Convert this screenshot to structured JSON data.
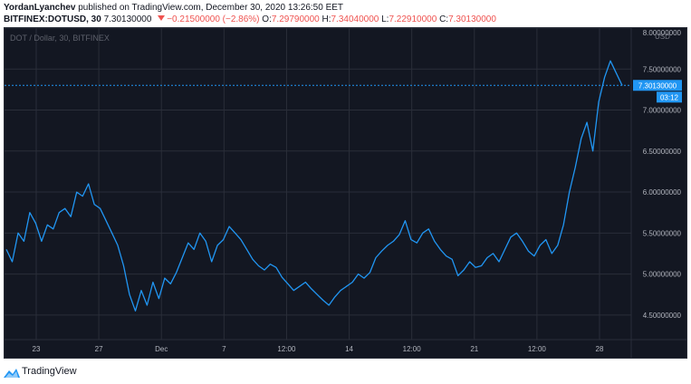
{
  "header": {
    "author": "YordanLyanchev",
    "published_text": "published on TradingView.com, December 30, 2020 13:26:50 EET",
    "symbol": "BITFINEX:DOTUSD, 30",
    "last": "7.30130000",
    "change": "−0.21500000 (−2.86%)",
    "o_label": "O:",
    "o_value": "7.29790000",
    "h_label": "H:",
    "h_value": "7.34040000",
    "l_label": "L:",
    "l_value": "7.22910000",
    "c_label": "C:",
    "c_value": "7.30130000"
  },
  "chart_title": "DOT / Dollar, 30, BITFINEX",
  "price_axis": {
    "currency": "USD",
    "ticks": [
      "8.00000000",
      "7.50000000",
      "7.00000000",
      "6.50000000",
      "6.00000000",
      "5.50000000",
      "5.00000000",
      "4.50000000"
    ],
    "current_price_label": "7.30130000",
    "countdown_label": "03:12"
  },
  "time_axis": {
    "ticks": [
      "23",
      "27",
      "Dec",
      "7",
      "12:00",
      "14",
      "12:00",
      "21",
      "12:00",
      "28"
    ]
  },
  "footer": {
    "brand": "TradingView"
  },
  "colors": {
    "background": "#131722",
    "line": "#2196f3",
    "grid": "#2a2e39",
    "axis_text": "#b2b5be",
    "down": "#ef5350",
    "price_tag": "#2196f3"
  },
  "chart_data": {
    "type": "line",
    "title": "DOT / Dollar, 30, BITFINEX",
    "xlabel": "",
    "ylabel": "",
    "ylim": [
      4.2,
      8.0
    ],
    "x_tick_labels": [
      "23",
      "27",
      "Dec",
      "7",
      "12:00",
      "14",
      "12:00",
      "21",
      "12:00",
      "28"
    ],
    "y_tick_labels": [
      "8.00000000",
      "7.50000000",
      "7.00000000",
      "6.50000000",
      "6.00000000",
      "5.50000000",
      "5.00000000",
      "4.50000000"
    ],
    "grid": true,
    "series": [
      {
        "values": [
          5.3,
          5.15,
          5.5,
          5.4,
          5.75,
          5.62,
          5.4,
          5.6,
          5.55,
          5.75,
          5.8,
          5.7,
          6.0,
          5.95,
          6.1,
          5.85,
          5.8,
          5.65,
          5.5,
          5.35,
          5.1,
          4.75,
          4.55,
          4.8,
          4.62,
          4.9,
          4.7,
          4.95,
          4.88,
          5.02,
          5.2,
          5.38,
          5.3,
          5.5,
          5.4,
          5.15,
          5.35,
          5.42,
          5.58,
          5.5,
          5.42,
          5.3,
          5.18,
          5.1,
          5.05,
          5.12,
          5.08,
          4.96,
          4.88,
          4.8,
          4.85,
          4.9,
          4.82,
          4.75,
          4.68,
          4.62,
          4.72,
          4.8,
          4.85,
          4.9,
          5.0,
          4.95,
          5.02,
          5.2,
          5.28,
          5.35,
          5.4,
          5.48,
          5.65,
          5.42,
          5.38,
          5.5,
          5.55,
          5.4,
          5.3,
          5.22,
          5.18,
          4.98,
          5.05,
          5.15,
          5.08,
          5.1,
          5.2,
          5.25,
          5.15,
          5.3,
          5.45,
          5.5,
          5.4,
          5.28,
          5.22,
          5.35,
          5.42,
          5.25,
          5.35,
          5.6,
          6.0,
          6.3,
          6.65,
          6.85,
          6.5,
          7.1,
          7.4,
          7.6,
          7.45,
          7.3
        ]
      }
    ]
  }
}
